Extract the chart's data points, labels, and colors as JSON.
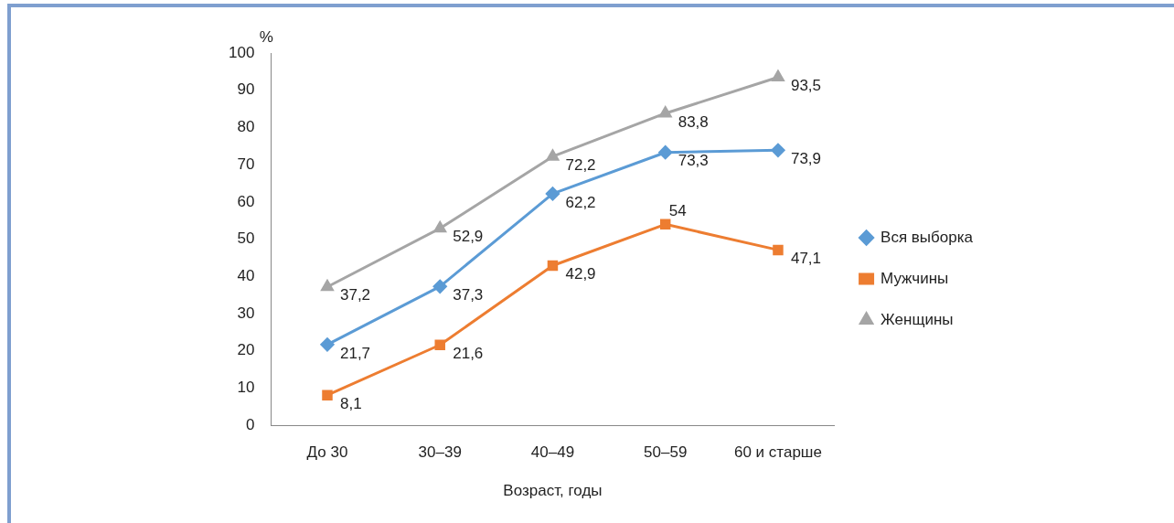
{
  "chart_data": {
    "type": "line",
    "xlabel": "Возраст, годы",
    "ylabel": "%",
    "categories": [
      "До 30",
      "30–39",
      "40–49",
      "50–59",
      "60 и старше"
    ],
    "series": [
      {
        "name": "Вся выборка",
        "color": "#5b9bd5",
        "marker": "diamond",
        "values": [
          21.7,
          37.3,
          62.2,
          73.3,
          73.9
        ],
        "value_labels": [
          "21,7",
          "37,3",
          "62,2",
          "73,3",
          "73,9"
        ]
      },
      {
        "name": "Мужчины",
        "color": "#ed7d31",
        "marker": "square",
        "values": [
          8.1,
          21.6,
          42.9,
          54,
          47.1
        ],
        "value_labels": [
          "8,1",
          "21,6",
          "42,9",
          "54",
          "47,1"
        ]
      },
      {
        "name": "Женщины",
        "color": "#a5a5a5",
        "marker": "triangle",
        "values": [
          37.2,
          52.9,
          72.2,
          83.8,
          93.5
        ],
        "value_labels": [
          "37,2",
          "52,9",
          "72,2",
          "83,8",
          "93,5"
        ]
      }
    ],
    "ylim": [
      0,
      100
    ],
    "yticks": [
      0,
      10,
      20,
      30,
      40,
      50,
      60,
      70,
      80,
      90,
      100
    ],
    "grid": false,
    "legend": "right"
  }
}
